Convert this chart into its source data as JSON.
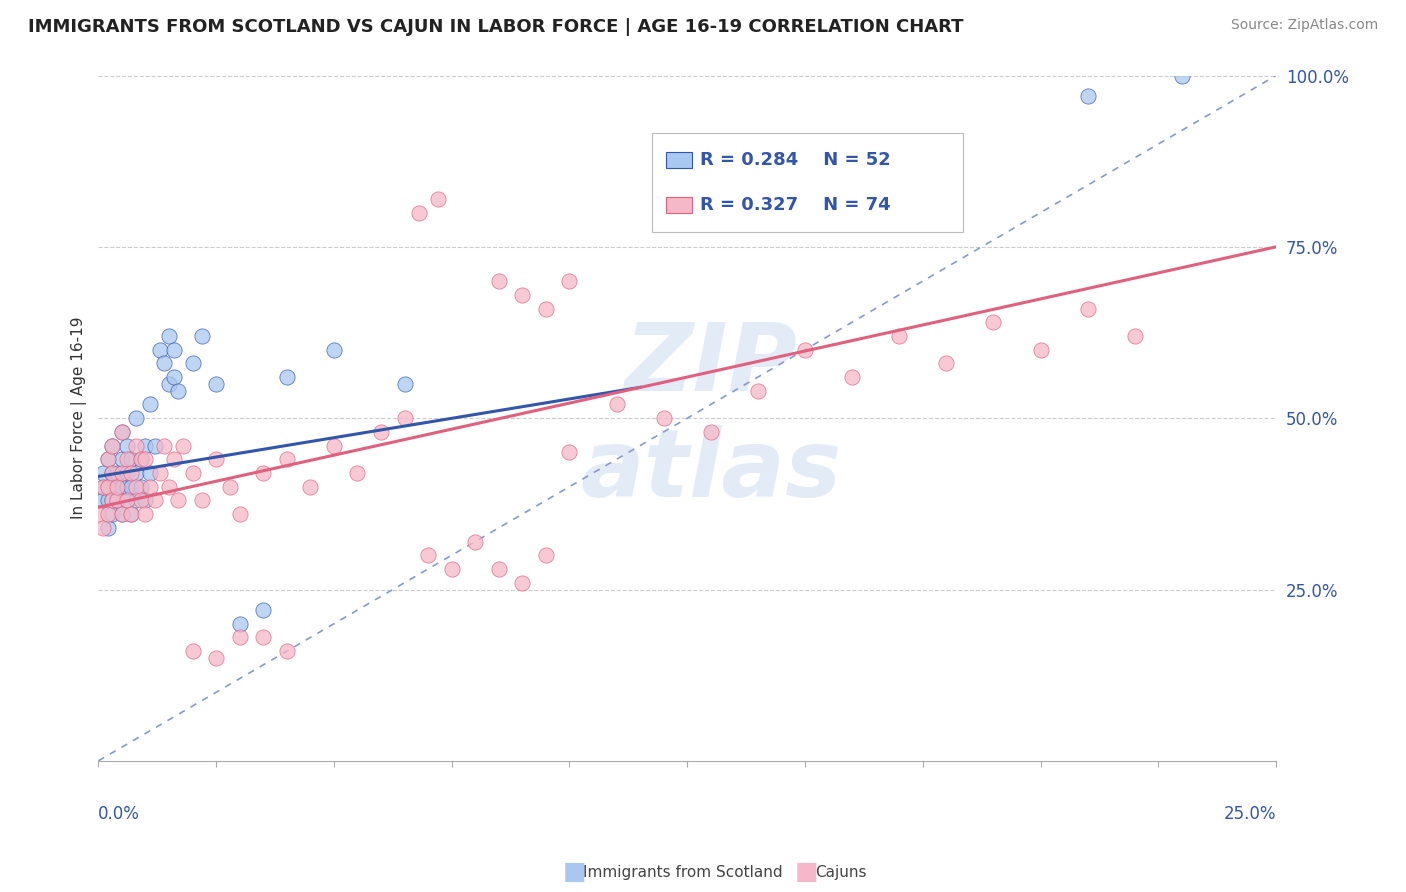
{
  "title": "IMMIGRANTS FROM SCOTLAND VS CAJUN IN LABOR FORCE | AGE 16-19 CORRELATION CHART",
  "source": "Source: ZipAtlas.com",
  "ylabel": "In Labor Force | Age 16-19",
  "legend_label1": "Immigrants from Scotland",
  "legend_label2": "Cajuns",
  "R1": 0.284,
  "N1": 52,
  "R2": 0.327,
  "N2": 74,
  "xlim": [
    0.0,
    0.25
  ],
  "ylim": [
    0.0,
    1.0
  ],
  "yticks": [
    0.25,
    0.5,
    0.75,
    1.0
  ],
  "ytick_labels": [
    "25.0%",
    "50.0%",
    "75.0%",
    "100.0%"
  ],
  "color_blue": "#A8C8F0",
  "color_pink": "#F5B8C8",
  "trendline_blue": "#3355AA",
  "trendline_pink": "#E06080",
  "refline_color": "#8899CC",
  "background_color": "#FFFFFF",
  "title_fontsize": 13,
  "blue_scatter_x": [
    0.001,
    0.001,
    0.001,
    0.002,
    0.002,
    0.002,
    0.002,
    0.003,
    0.003,
    0.003,
    0.003,
    0.004,
    0.004,
    0.004,
    0.005,
    0.005,
    0.005,
    0.005,
    0.006,
    0.006,
    0.006,
    0.006,
    0.007,
    0.007,
    0.007,
    0.008,
    0.008,
    0.008,
    0.009,
    0.009,
    0.01,
    0.01,
    0.011,
    0.011,
    0.012,
    0.013,
    0.014,
    0.015,
    0.015,
    0.016,
    0.016,
    0.017,
    0.02,
    0.022,
    0.025,
    0.03,
    0.035,
    0.04,
    0.05,
    0.065,
    0.21,
    0.23
  ],
  "blue_scatter_y": [
    0.38,
    0.4,
    0.42,
    0.34,
    0.38,
    0.4,
    0.44,
    0.36,
    0.38,
    0.42,
    0.46,
    0.38,
    0.4,
    0.42,
    0.36,
    0.4,
    0.44,
    0.48,
    0.38,
    0.4,
    0.42,
    0.46,
    0.36,
    0.4,
    0.44,
    0.38,
    0.42,
    0.5,
    0.4,
    0.44,
    0.38,
    0.46,
    0.42,
    0.52,
    0.46,
    0.6,
    0.58,
    0.55,
    0.62,
    0.56,
    0.6,
    0.54,
    0.58,
    0.62,
    0.55,
    0.2,
    0.22,
    0.56,
    0.6,
    0.55,
    0.97,
    1.0
  ],
  "pink_scatter_x": [
    0.0,
    0.001,
    0.001,
    0.002,
    0.002,
    0.002,
    0.003,
    0.003,
    0.003,
    0.004,
    0.004,
    0.005,
    0.005,
    0.005,
    0.006,
    0.006,
    0.007,
    0.007,
    0.008,
    0.008,
    0.009,
    0.009,
    0.01,
    0.01,
    0.011,
    0.012,
    0.013,
    0.014,
    0.015,
    0.016,
    0.017,
    0.018,
    0.02,
    0.022,
    0.025,
    0.028,
    0.03,
    0.035,
    0.04,
    0.045,
    0.05,
    0.055,
    0.06,
    0.065,
    0.07,
    0.075,
    0.08,
    0.085,
    0.09,
    0.095,
    0.1,
    0.11,
    0.12,
    0.13,
    0.14,
    0.15,
    0.16,
    0.17,
    0.18,
    0.19,
    0.2,
    0.21,
    0.22,
    0.068,
    0.072,
    0.085,
    0.09,
    0.095,
    0.1,
    0.03,
    0.02,
    0.025,
    0.035,
    0.04
  ],
  "pink_scatter_y": [
    0.36,
    0.34,
    0.4,
    0.36,
    0.4,
    0.44,
    0.38,
    0.42,
    0.46,
    0.38,
    0.4,
    0.36,
    0.42,
    0.48,
    0.38,
    0.44,
    0.36,
    0.42,
    0.4,
    0.46,
    0.38,
    0.44,
    0.36,
    0.44,
    0.4,
    0.38,
    0.42,
    0.46,
    0.4,
    0.44,
    0.38,
    0.46,
    0.42,
    0.38,
    0.44,
    0.4,
    0.36,
    0.42,
    0.44,
    0.4,
    0.46,
    0.42,
    0.48,
    0.5,
    0.3,
    0.28,
    0.32,
    0.28,
    0.26,
    0.3,
    0.45,
    0.52,
    0.5,
    0.48,
    0.54,
    0.6,
    0.56,
    0.62,
    0.58,
    0.64,
    0.6,
    0.66,
    0.62,
    0.8,
    0.82,
    0.7,
    0.68,
    0.66,
    0.7,
    0.18,
    0.16,
    0.15,
    0.18,
    0.16
  ],
  "blue_trend_x": [
    0.0,
    0.115
  ],
  "blue_trend_y": [
    0.415,
    0.545
  ],
  "pink_trend_x": [
    0.0,
    0.25
  ],
  "pink_trend_y": [
    0.37,
    0.75
  ],
  "ref_line_x": [
    0.0,
    0.25
  ],
  "ref_line_y": [
    0.0,
    1.0
  ]
}
